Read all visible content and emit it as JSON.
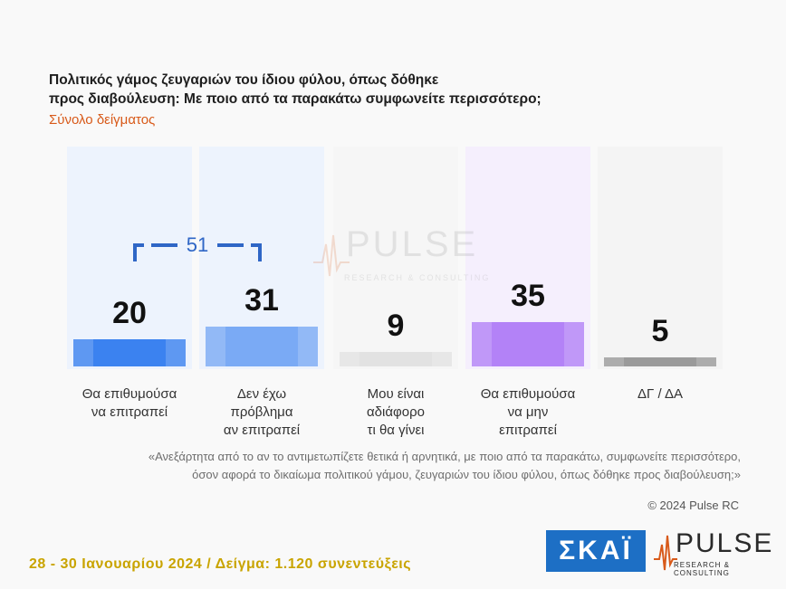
{
  "header": {
    "title_line1": "Πολιτικός γάμος ζευγαριών του ίδιου φύλου, όπως δόθηκε",
    "title_line2": "προς διαβούλευση: Με ποιο από τα παρακάτω συμφωνείτε περισσότερο;",
    "subtitle": "Σύνολο δείγματος"
  },
  "chart_data": {
    "type": "bar",
    "categories": [
      [
        "Θα επιθυμούσα",
        "να επιτραπεί"
      ],
      [
        "Δεν έχω",
        "πρόβλημα",
        "αν επιτραπεί"
      ],
      [
        "Μου είναι",
        "αδιάφορο",
        "τι θα γίνει"
      ],
      [
        "Θα επιθυμούσα",
        "να μην",
        "επιτραπεί"
      ],
      [
        "ΔΓ / ΔΑ"
      ]
    ],
    "values": [
      20,
      31,
      9,
      35,
      5
    ],
    "labels": [
      "20",
      "31",
      "9",
      "35",
      "5"
    ],
    "bar_colors": [
      "#3b82f0",
      "#7aaaf5",
      "#e2e2e2",
      "#b382f7",
      "#9a9a9a"
    ],
    "panel_colors": [
      "#edf3fd",
      "#edf3fd",
      "#f6f6f6",
      "#f5effd",
      "#f4f4f4"
    ],
    "ylim": [
      0,
      60
    ],
    "annotations": [
      {
        "type": "bracket",
        "from": 0,
        "to": 1,
        "label": "51",
        "color": "#2f66c6"
      }
    ]
  },
  "watermark": {
    "name": "PULSE",
    "tagline": "RESEARCH & CONSULTING"
  },
  "question": {
    "line1": "«Ανεξάρτητα από το αν το αντιμετωπίζετε θετικά ή αρνητικά, με ποιο από τα παρακάτω, συμφωνείτε περισσότερο,",
    "line2": "όσον αφορά το δικαίωμα πολιτικού γάμου, ζευγαριών του ίδιου φύλου, όπως δόθηκε προς διαβούλευση;»"
  },
  "copyright": "© 2024 Pulse RC",
  "footer": {
    "fieldwork": "28 - 30 Ιανουαρίου 2024  /  Δείγμα:  1.120 συνεντεύξεις",
    "skai_logo": "ΣΚΑΪ",
    "pulse_logo": "PULSE",
    "pulse_tagline": "RESEARCH & CONSULTING"
  }
}
